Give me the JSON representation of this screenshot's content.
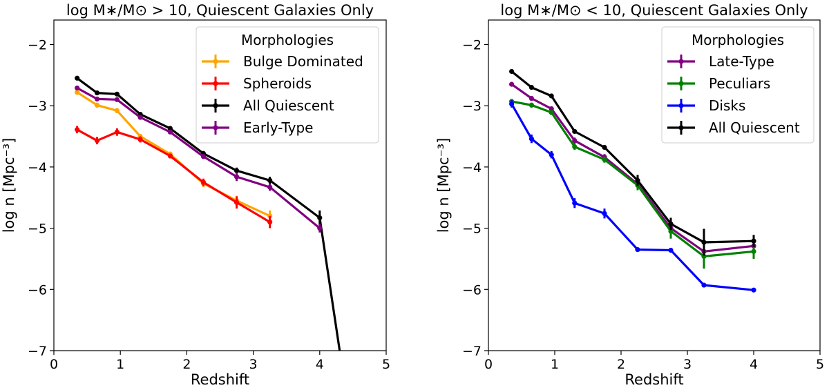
{
  "chart_data": [
    {
      "type": "line",
      "title": "log M∗/M⊙ > 10, Quiescent Galaxies Only",
      "xlabel": "Redshift",
      "ylabel": "log n [Mpc⁻³]",
      "xlim": [
        0,
        5
      ],
      "ylim": [
        -7,
        -1.6
      ],
      "xticks": [
        0,
        1,
        2,
        3,
        4,
        5
      ],
      "yticks": [
        -7,
        -6,
        -5,
        -4,
        -3,
        -2
      ],
      "xtick_labels": [
        "0",
        "1",
        "2",
        "3",
        "4",
        "5"
      ],
      "ytick_labels": [
        "−7",
        "−6",
        "−5",
        "−4",
        "−3",
        "−2"
      ],
      "legend_title": "Morphologies",
      "legend_position": "top-right",
      "series": [
        {
          "name": "Bulge Dominated",
          "color": "#FFA500",
          "x": [
            0.35,
            0.65,
            0.95,
            1.3,
            1.75,
            2.25,
            2.75,
            3.25
          ],
          "y": [
            -2.78,
            -2.99,
            -3.08,
            -3.5,
            -3.79,
            -4.27,
            -4.55,
            -4.8
          ],
          "err": [
            0.04,
            0.04,
            0.04,
            0.04,
            0.04,
            0.06,
            0.08,
            0.09
          ]
        },
        {
          "name": "Spheroids",
          "color": "#FF0000",
          "x": [
            0.35,
            0.65,
            0.95,
            1.3,
            1.75,
            2.25,
            2.75,
            3.25
          ],
          "y": [
            -3.39,
            -3.57,
            -3.43,
            -3.55,
            -3.82,
            -4.25,
            -4.58,
            -4.9
          ],
          "err": [
            0.06,
            0.06,
            0.06,
            0.05,
            0.04,
            0.06,
            0.1,
            0.1
          ]
        },
        {
          "name": "All Quiescent",
          "color": "#000000",
          "x": [
            0.35,
            0.65,
            0.95,
            1.3,
            1.75,
            2.25,
            2.75,
            3.25,
            4.0,
            4.3
          ],
          "y": [
            -2.55,
            -2.79,
            -2.81,
            -3.14,
            -3.37,
            -3.78,
            -4.06,
            -4.22,
            -4.83,
            -7.0
          ],
          "err": [
            0.02,
            0.02,
            0.02,
            0.02,
            0.02,
            0.04,
            0.05,
            0.06,
            0.12,
            0
          ]
        },
        {
          "name": "Early-Type",
          "color": "#800080",
          "x": [
            0.35,
            0.65,
            0.95,
            1.3,
            1.75,
            2.25,
            2.75,
            3.25,
            4.0
          ],
          "y": [
            -2.71,
            -2.89,
            -2.9,
            -3.19,
            -3.43,
            -3.83,
            -4.16,
            -4.33,
            -5.0
          ],
          "err": [
            0.03,
            0.03,
            0.03,
            0.03,
            0.03,
            0.04,
            0.07,
            0.06,
            0.07
          ]
        }
      ]
    },
    {
      "type": "line",
      "title": "log M∗/M⊙ < 10, Quiescent Galaxies Only",
      "xlabel": "Redshift",
      "ylabel": "log n [Mpc⁻³]",
      "xlim": [
        0,
        5
      ],
      "ylim": [
        -7,
        -1.6
      ],
      "xticks": [
        0,
        1,
        2,
        3,
        4,
        5
      ],
      "yticks": [
        -7,
        -6,
        -5,
        -4,
        -3,
        -2
      ],
      "xtick_labels": [
        "0",
        "1",
        "2",
        "3",
        "4",
        "5"
      ],
      "ytick_labels": [
        "−7",
        "−6",
        "−5",
        "−4",
        "−3",
        "−2"
      ],
      "legend_title": "Morphologies",
      "legend_position": "top-right",
      "series": [
        {
          "name": "Late-Type",
          "color": "#800080",
          "x": [
            0.35,
            0.65,
            0.95,
            1.3,
            1.75,
            2.25,
            2.75,
            3.25,
            4.0
          ],
          "y": [
            -2.65,
            -2.88,
            -3.05,
            -3.57,
            -3.84,
            -4.28,
            -5.0,
            -5.38,
            -5.29
          ],
          "err": [
            0.03,
            0.04,
            0.04,
            0.05,
            0.05,
            0.07,
            0.1,
            0.1,
            0.08
          ]
        },
        {
          "name": "Peculiars",
          "color": "#008000",
          "x": [
            0.35,
            0.65,
            0.95,
            1.3,
            1.75,
            2.25,
            2.75,
            3.25,
            4.0
          ],
          "y": [
            -2.93,
            -2.99,
            -3.11,
            -3.67,
            -3.88,
            -4.3,
            -5.05,
            -5.46,
            -5.38
          ],
          "err": [
            0.04,
            0.04,
            0.04,
            0.05,
            0.05,
            0.08,
            0.12,
            0.2,
            0.12
          ]
        },
        {
          "name": "Disks",
          "color": "#0000FF",
          "x": [
            0.35,
            0.65,
            0.95,
            1.3,
            1.75,
            2.25,
            2.75,
            3.25,
            4.0
          ],
          "y": [
            -2.97,
            -3.54,
            -3.8,
            -4.59,
            -4.76,
            -5.35,
            -5.36,
            -5.93,
            -6.01
          ],
          "err": [
            0.06,
            0.07,
            0.06,
            0.08,
            0.08,
            0.02,
            0.02,
            0.03,
            0.02
          ]
        },
        {
          "name": "All Quiescent",
          "color": "#000000",
          "x": [
            0.35,
            0.65,
            0.95,
            1.3,
            1.75,
            2.25,
            2.75,
            3.25,
            4.0
          ],
          "y": [
            -2.44,
            -2.7,
            -2.84,
            -3.42,
            -3.68,
            -4.22,
            -4.93,
            -5.23,
            -5.21
          ],
          "err": [
            0.02,
            0.02,
            0.03,
            0.03,
            0.03,
            0.09,
            0.1,
            0.22,
            0.1
          ]
        }
      ]
    }
  ]
}
